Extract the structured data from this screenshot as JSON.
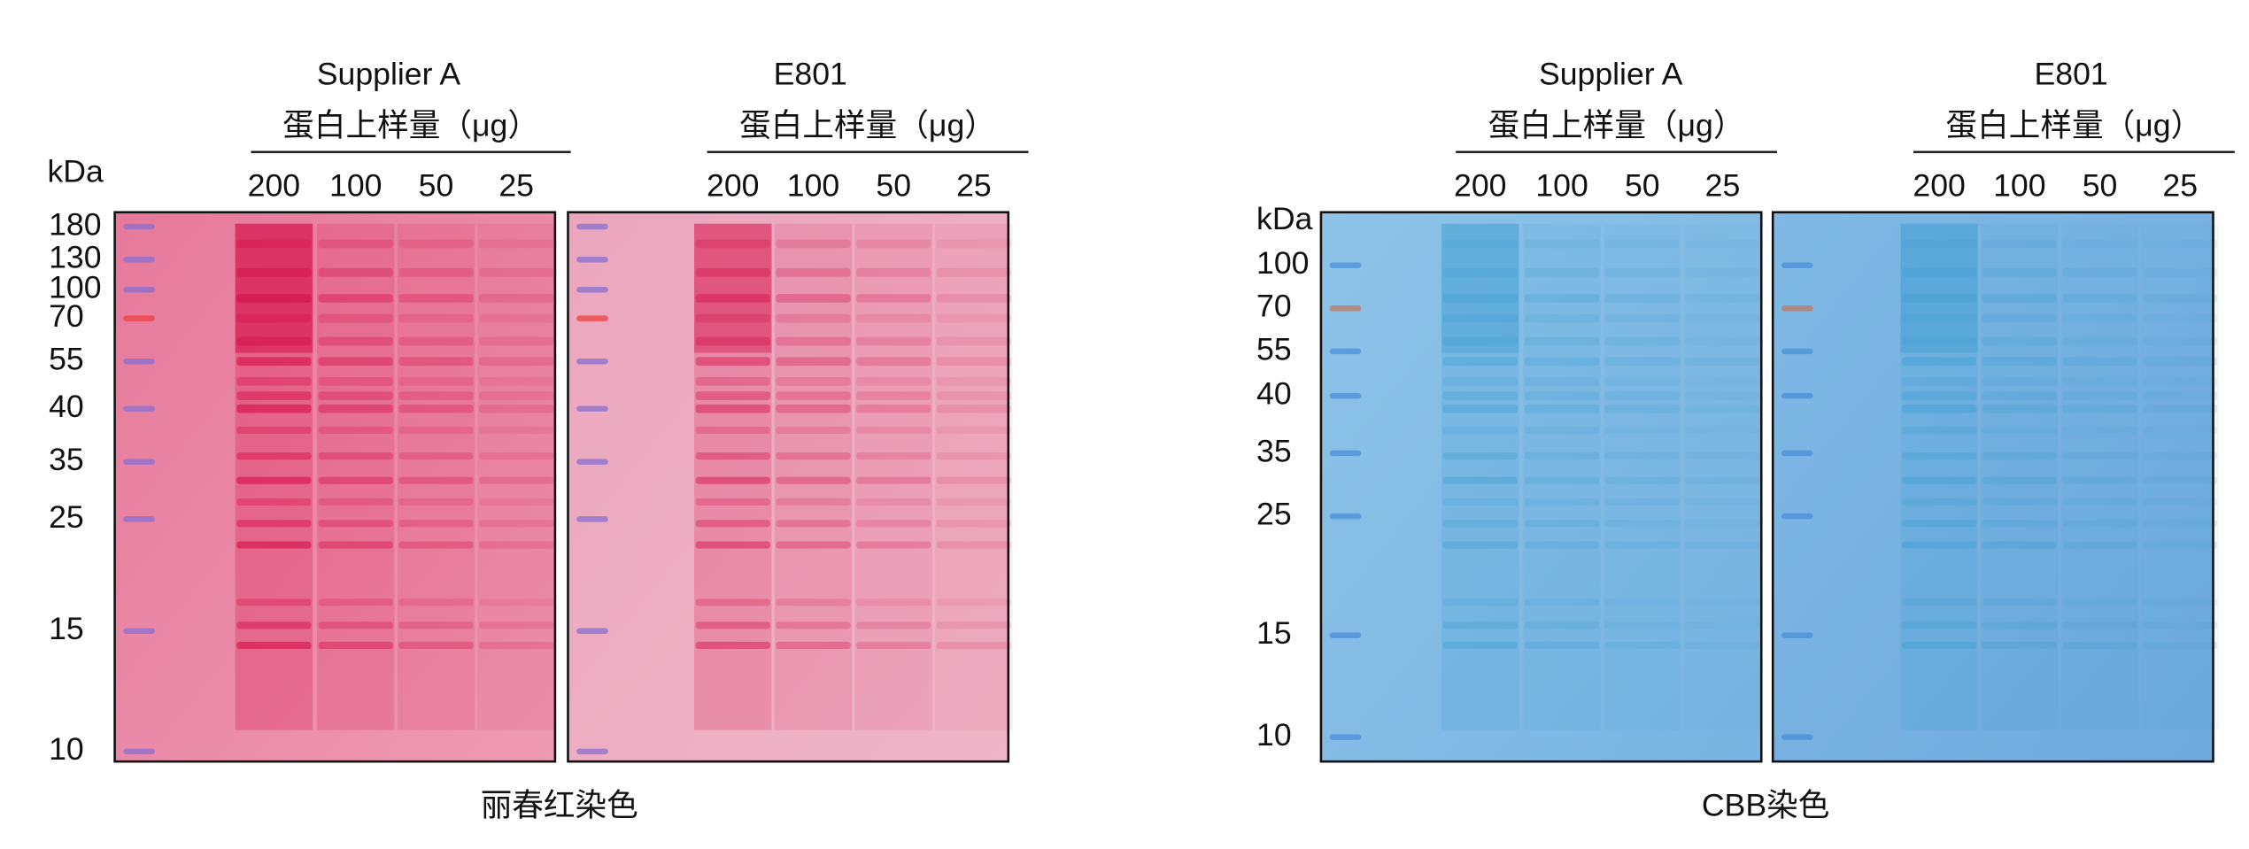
{
  "panels": [
    {
      "title": "丽春红染色",
      "unit": "kDa",
      "markers": [
        "180",
        "130",
        "100",
        "70",
        "55",
        "40",
        "35",
        "25",
        "15",
        "10"
      ],
      "groups": [
        {
          "name": "Supplier A",
          "label": "蛋白上样量（μg）",
          "lanes": [
            "200",
            "100",
            "50",
            "25"
          ]
        },
        {
          "name": "E801",
          "label": "蛋白上样量（μg）",
          "lanes": [
            "200",
            "100",
            "50",
            "25"
          ]
        }
      ]
    },
    {
      "title": "CBB染色",
      "unit": "kDa",
      "markers": [
        "100",
        "70",
        "55",
        "40",
        "35",
        "25",
        "15",
        "10"
      ],
      "groups": [
        {
          "name": "Supplier A",
          "label": "蛋白上样量（μg）",
          "lanes": [
            "200",
            "100",
            "50",
            "25"
          ]
        },
        {
          "name": "E801",
          "label": "蛋白上样量（μg）",
          "lanes": [
            "200",
            "100",
            "50",
            "25"
          ]
        }
      ]
    }
  ]
}
